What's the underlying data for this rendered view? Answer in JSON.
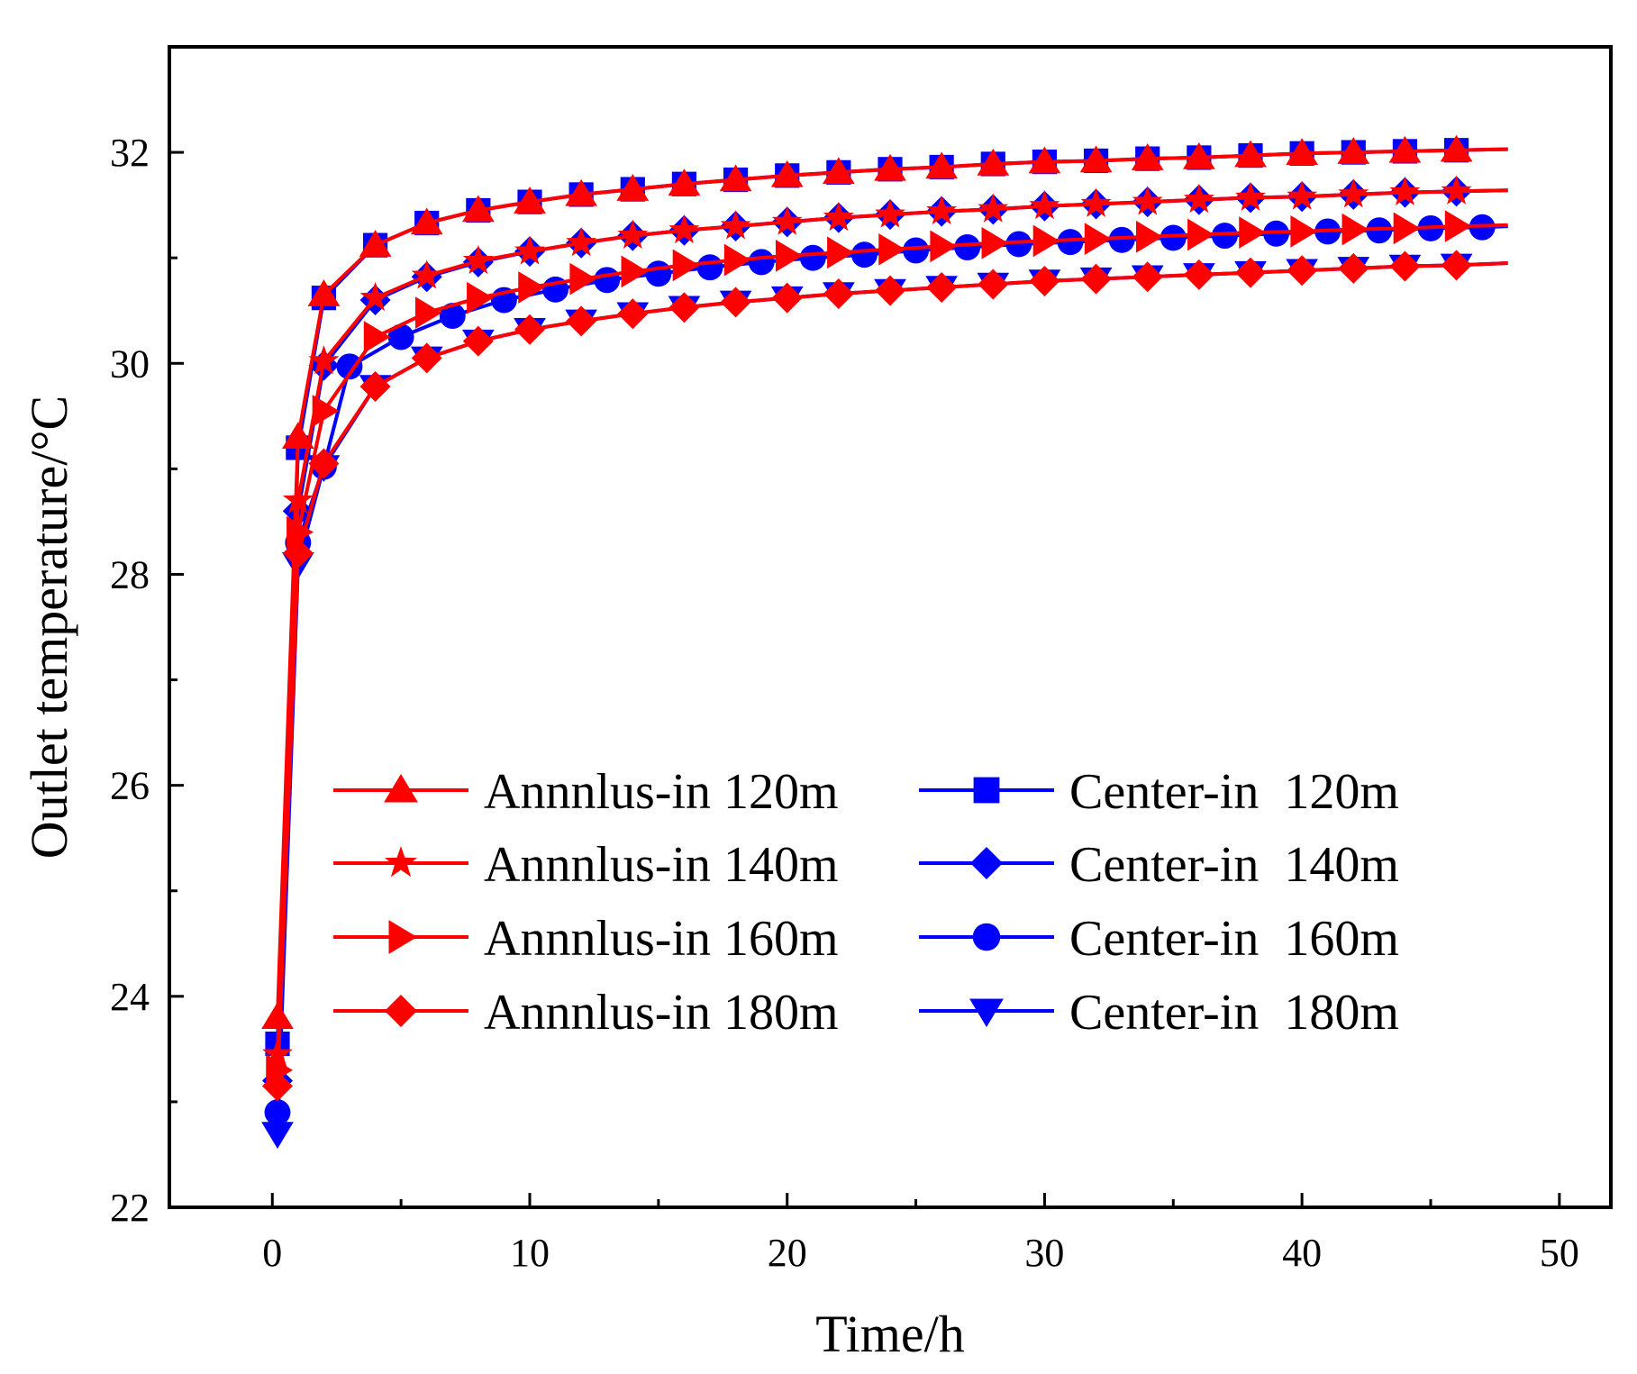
{
  "chart_data": {
    "type": "line",
    "xlabel": "Time/h",
    "ylabel": "Outlet temperature/°C",
    "xlim": [
      -4,
      52
    ],
    "ylim": [
      22,
      33
    ],
    "xticks": [
      0,
      10,
      20,
      30,
      40,
      50
    ],
    "yticks": [
      22,
      24,
      26,
      28,
      30,
      32
    ],
    "xtick_labels": [
      "0",
      "10",
      "20",
      "30",
      "40",
      "50"
    ],
    "ytick_labels": [
      "22",
      "24",
      "26",
      "28",
      "30",
      "32"
    ],
    "grid": false,
    "legend_position": "center",
    "series": [
      {
        "name": "Annnlus-in 120m",
        "color": "#ff0000",
        "marker": "triangle-up",
        "x": [
          0.2,
          1,
          2,
          4,
          6,
          8,
          10,
          12,
          14,
          16,
          18,
          20,
          22,
          24,
          26,
          28,
          30,
          32,
          34,
          36,
          38,
          40,
          42,
          44,
          46,
          48
        ],
        "y": [
          23.8,
          29.3,
          30.65,
          31.12,
          31.33,
          31.45,
          31.53,
          31.6,
          31.65,
          31.7,
          31.74,
          31.78,
          31.81,
          31.84,
          31.86,
          31.89,
          31.91,
          31.92,
          31.94,
          31.95,
          31.97,
          31.99,
          32.0,
          32.01,
          32.02,
          32.03
        ]
      },
      {
        "name": "Annnlus-in 140m",
        "color": "#ff0000",
        "marker": "star",
        "x": [
          0.2,
          1,
          2,
          4,
          6,
          8,
          10,
          12,
          14,
          16,
          18,
          20,
          22,
          24,
          26,
          28,
          30,
          32,
          34,
          36,
          38,
          40,
          42,
          44,
          46,
          48
        ],
        "y": [
          23.45,
          28.7,
          30.02,
          30.62,
          30.83,
          30.97,
          31.06,
          31.14,
          31.21,
          31.26,
          31.3,
          31.34,
          31.38,
          31.41,
          31.44,
          31.46,
          31.49,
          31.51,
          31.53,
          31.55,
          31.57,
          31.58,
          31.6,
          31.62,
          31.63,
          31.64
        ]
      },
      {
        "name": "Annnlus-in 160m",
        "color": "#ff0000",
        "marker": "triangle-right",
        "x": [
          0.2,
          1,
          2,
          4,
          6,
          8,
          10,
          12,
          14,
          16,
          18,
          20,
          22,
          24,
          26,
          28,
          30,
          32,
          34,
          36,
          38,
          40,
          42,
          44,
          46,
          48
        ],
        "y": [
          23.3,
          28.4,
          29.55,
          30.25,
          30.48,
          30.62,
          30.72,
          30.8,
          30.87,
          30.93,
          30.98,
          31.02,
          31.05,
          31.08,
          31.11,
          31.14,
          31.16,
          31.18,
          31.2,
          31.22,
          31.24,
          31.25,
          31.27,
          31.28,
          31.3,
          31.31
        ]
      },
      {
        "name": "Annnlus-in 180m",
        "color": "#ff0000",
        "marker": "diamond",
        "x": [
          0.2,
          1,
          2,
          4,
          6,
          8,
          10,
          12,
          14,
          16,
          18,
          20,
          22,
          24,
          26,
          28,
          30,
          32,
          34,
          36,
          38,
          40,
          42,
          44,
          46,
          48
        ],
        "y": [
          23.15,
          28.2,
          29.05,
          29.78,
          30.05,
          30.21,
          30.32,
          30.4,
          30.47,
          30.53,
          30.58,
          30.62,
          30.66,
          30.69,
          30.72,
          30.75,
          30.78,
          30.8,
          30.82,
          30.84,
          30.86,
          30.88,
          30.9,
          30.92,
          30.93,
          30.95
        ]
      },
      {
        "name": "Center-in  120m",
        "color": "#0000ff",
        "marker": "square",
        "x": [
          0.2,
          1,
          2,
          4,
          6,
          8,
          10,
          12,
          14,
          16,
          18,
          20,
          22,
          24,
          26,
          28,
          30,
          32,
          34,
          36,
          38,
          40,
          42,
          44,
          46,
          48
        ],
        "y": [
          23.55,
          29.2,
          30.62,
          31.12,
          31.33,
          31.45,
          31.53,
          31.6,
          31.65,
          31.7,
          31.74,
          31.78,
          31.81,
          31.84,
          31.86,
          31.89,
          31.91,
          31.92,
          31.94,
          31.95,
          31.97,
          31.99,
          32.0,
          32.01,
          32.02,
          32.03
        ]
      },
      {
        "name": "Center-in  140m",
        "color": "#0000ff",
        "marker": "diamond",
        "x": [
          0.2,
          1,
          2,
          4,
          6,
          8,
          10,
          12,
          14,
          16,
          18,
          20,
          22,
          24,
          26,
          28,
          30,
          32,
          34,
          36,
          38,
          40,
          42,
          44,
          46,
          48
        ],
        "y": [
          23.2,
          28.6,
          29.98,
          30.6,
          30.82,
          30.96,
          31.06,
          31.14,
          31.21,
          31.26,
          31.3,
          31.34,
          31.38,
          31.41,
          31.44,
          31.46,
          31.49,
          31.51,
          31.53,
          31.55,
          31.57,
          31.58,
          31.6,
          31.62,
          31.63,
          31.64
        ]
      },
      {
        "name": "Center-in  160m",
        "color": "#0000ff",
        "marker": "circle",
        "x": [
          0.2,
          1,
          2,
          3,
          5,
          7,
          9,
          11,
          13,
          15,
          17,
          19,
          21,
          23,
          25,
          27,
          29,
          31,
          33,
          35,
          37,
          39,
          41,
          43,
          45,
          47,
          48
        ],
        "y": [
          22.9,
          28.3,
          29.02,
          29.97,
          30.25,
          30.45,
          30.6,
          30.7,
          30.79,
          30.85,
          30.91,
          30.96,
          31.0,
          31.03,
          31.07,
          31.1,
          31.13,
          31.15,
          31.17,
          31.19,
          31.21,
          31.23,
          31.25,
          31.26,
          31.28,
          31.29,
          31.3
        ]
      },
      {
        "name": "Center-in  180m",
        "color": "#0000ff",
        "marker": "triangle-down",
        "x": [
          0.2,
          1,
          2,
          4,
          6,
          8,
          10,
          12,
          14,
          16,
          18,
          20,
          22,
          24,
          26,
          28,
          30,
          32,
          34,
          36,
          38,
          40,
          42,
          44,
          46,
          48
        ],
        "y": [
          22.7,
          28.1,
          29.02,
          29.78,
          30.05,
          30.21,
          30.32,
          30.4,
          30.47,
          30.53,
          30.58,
          30.62,
          30.66,
          30.69,
          30.72,
          30.75,
          30.78,
          30.8,
          30.82,
          30.84,
          30.86,
          30.88,
          30.9,
          30.92,
          30.93,
          30.95
        ]
      }
    ]
  }
}
